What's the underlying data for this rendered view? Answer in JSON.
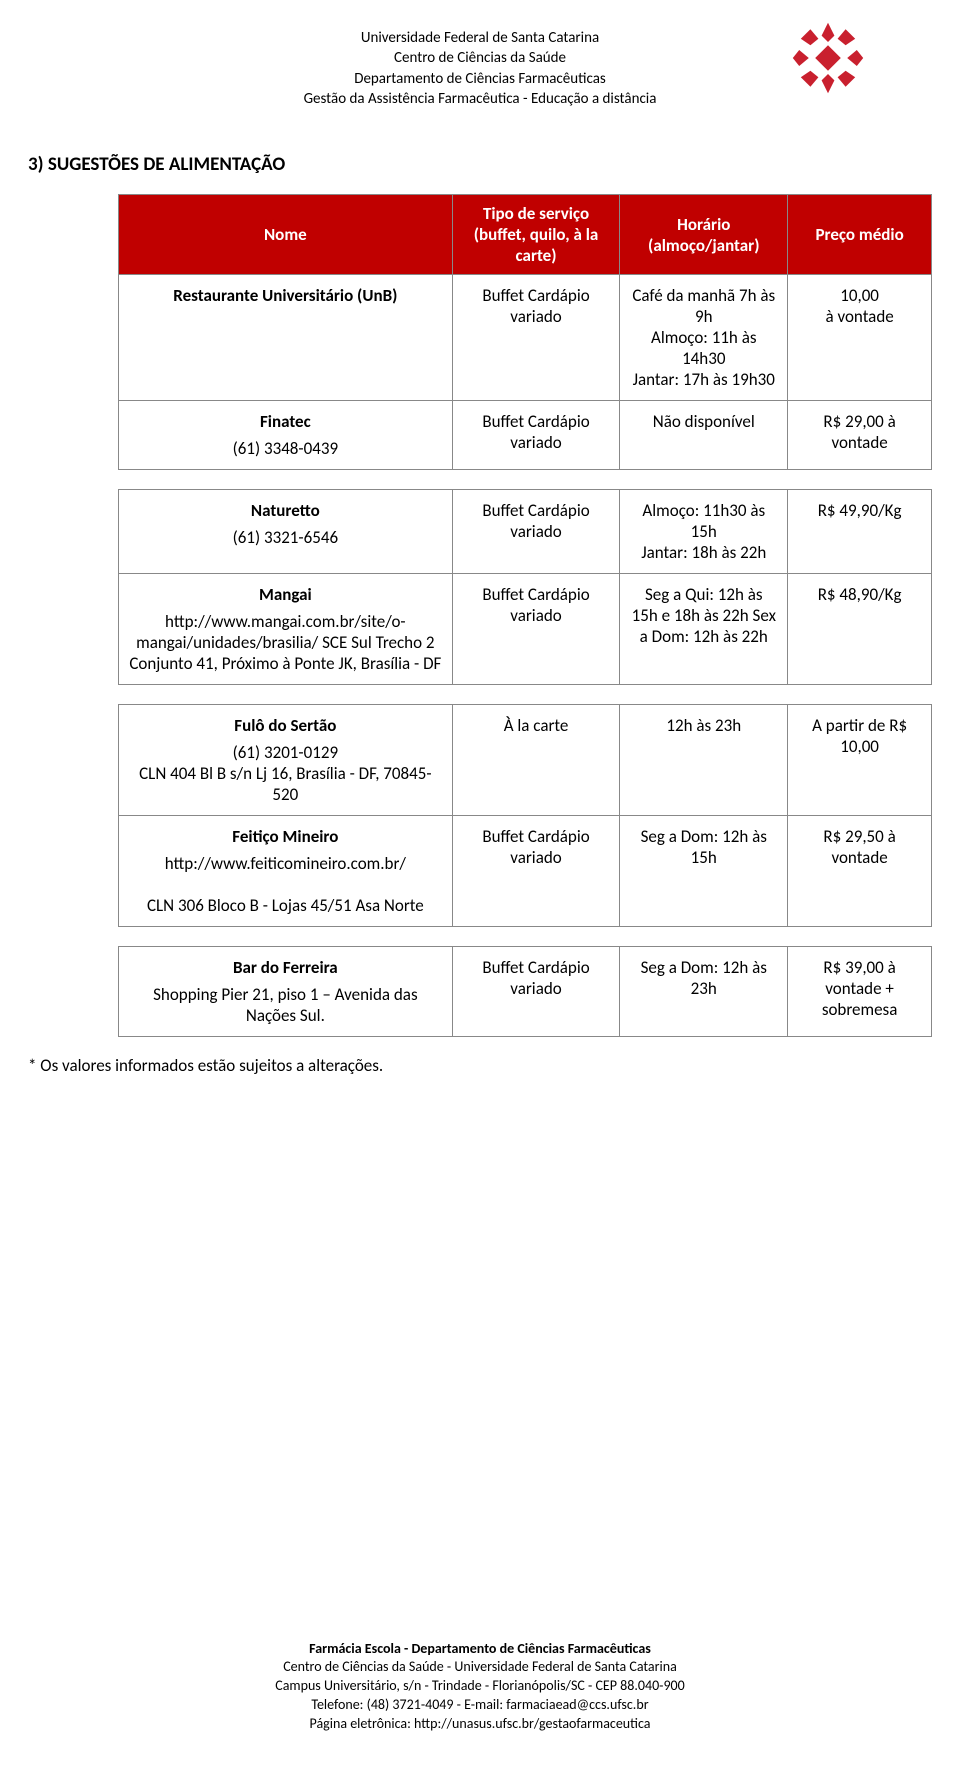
{
  "header": {
    "line1": "Universidade Federal de Santa Catarina",
    "line2": "Centro de Ciências da Saúde",
    "line3": "Departamento de Ciências Farmacêuticas",
    "line4": "Gestão da Assistência Farmacêutica - Educação a distância"
  },
  "logo": {
    "fill": "#c9202e",
    "bg": "#ffffff"
  },
  "section_title": "3) SUGESTÕES DE ALIMENTAÇÃO",
  "table": {
    "header_bg": "#c00000",
    "header_color": "#ffffff",
    "border_color": "#888888",
    "columns": {
      "name": "Nome",
      "service": "Tipo de serviço (buffet, quilo, à la carte)",
      "hours": "Horário (almoço/jantar)",
      "price": "Preço médio"
    },
    "rows": [
      {
        "name_bold": "Restaurante Universitário (UnB)",
        "name_sub": "",
        "service": "Buffet Cardápio variado",
        "hours": "Café da manhã 7h às 9h\nAlmoço: 11h às 14h30\nJantar: 17h às 19h30",
        "price": "10,00\nà vontade"
      },
      {
        "name_bold": "Finatec",
        "name_sub": "(61) 3348-0439",
        "service": "Buffet Cardápio variado",
        "hours": "Não disponível",
        "price": "R$ 29,00 à vontade"
      }
    ],
    "rows2": [
      {
        "name_bold": "Naturetto",
        "name_sub": "(61) 3321-6546",
        "service": "Buffet Cardápio variado",
        "hours": "Almoço: 11h30 às 15h\nJantar: 18h às 22h",
        "price": "R$ 49,90/Kg"
      },
      {
        "name_bold": "Mangai",
        "name_sub": "http://www.mangai.com.br/site/o-mangai/unidades/brasilia/  SCE Sul Trecho 2 Conjunto 41, Próximo à Ponte JK, Brasília - DF",
        "service": "Buffet Cardápio variado",
        "hours": "Seg a Qui: 12h às 15h e 18h às 22h Sex a Dom: 12h às 22h",
        "price": "R$ 48,90/Kg"
      }
    ],
    "rows3": [
      {
        "name_bold": "Fulô do Sertão",
        "name_sub": "(61) 3201-0129\nCLN 404 Bl B s/n Lj 16, Brasília - DF, 70845-520",
        "service": "À la carte",
        "hours": "12h às 23h",
        "price": "A partir de R$ 10,00"
      },
      {
        "name_bold": "Feitiço Mineiro",
        "name_sub": "http://www.feiticomineiro.com.br/\n\nCLN 306 Bloco B - Lojas 45/51 Asa Norte",
        "service": "Buffet Cardápio variado",
        "hours": "Seg a Dom: 12h às 15h",
        "price": "R$ 29,50 à vontade"
      }
    ],
    "rows4": [
      {
        "name_bold": "Bar do Ferreira",
        "name_sub": "Shopping Pier 21, piso 1 – Avenida das Nações Sul.",
        "service": "Buffet Cardápio variado",
        "hours": "Seg a Dom: 12h às 23h",
        "price": "R$ 39,00 à vontade + sobremesa"
      }
    ]
  },
  "footnote": "* Os valores informados estão sujeitos a alterações.",
  "footer": {
    "line1": "Farmácia Escola - Departamento de Ciências Farmacêuticas",
    "line2": "Centro de Ciências da Saúde - Universidade Federal de Santa Catarina",
    "line3": "Campus Universitário, s/n - Trindade - Florianópolis/SC - CEP 88.040-900",
    "line4": "Telefone: (48) 3721-4049 - E-mail: farmaciaead@ccs.ufsc.br",
    "line5": "Página eletrônica: http://unasus.ufsc.br/gestaofarmaceutica"
  }
}
